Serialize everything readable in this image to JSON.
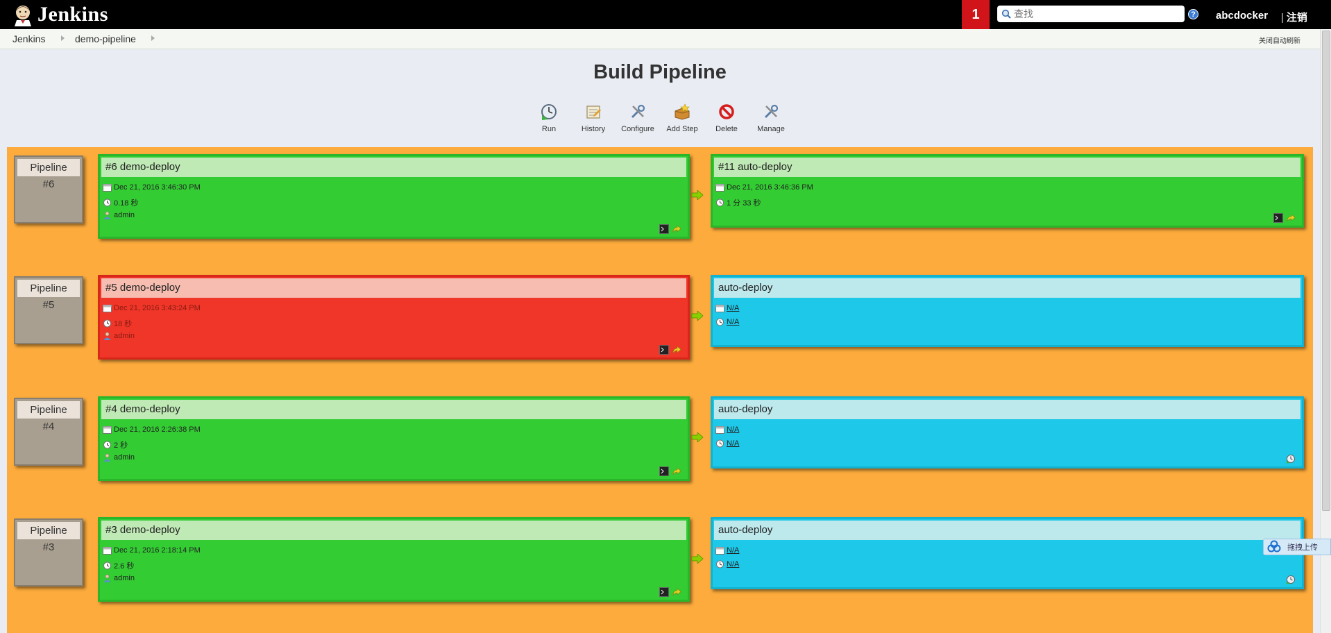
{
  "header": {
    "logo_text": "Jenkins",
    "notification_count": "1",
    "search_placeholder": "查找",
    "help_label": "?",
    "username": "abcdocker",
    "logout_label": "注销",
    "logout_separator": "|"
  },
  "breadcrumbs": {
    "items": [
      "Jenkins",
      "demo-pipeline"
    ],
    "auto_refresh": "关闭自动刷新"
  },
  "page_title": "Build Pipeline",
  "toolbar": {
    "run": "Run",
    "history": "History",
    "configure": "Configure",
    "add_step": "Add Step",
    "delete": "Delete",
    "manage": "Manage"
  },
  "pipelines": [
    {
      "label": "Pipeline",
      "number": "#6",
      "first": {
        "status": "success",
        "title": "#6 demo-deploy",
        "date": "Dec 21, 2016 3:46:30 PM",
        "duration": "0.18 秒",
        "user": "admin"
      },
      "second": {
        "status": "success",
        "title": "#11 auto-deploy",
        "date": "Dec 21, 2016 3:46:36 PM",
        "duration": "1 分 33 秒"
      }
    },
    {
      "label": "Pipeline",
      "number": "#5",
      "first": {
        "status": "failed",
        "title": "#5 demo-deploy",
        "date": "Dec 21, 2016 3:43:24 PM",
        "duration": "18 秒",
        "user": "admin"
      },
      "second": {
        "status": "pending",
        "title": "auto-deploy",
        "date": "N/A",
        "duration": "N/A"
      }
    },
    {
      "label": "Pipeline",
      "number": "#4",
      "first": {
        "status": "success",
        "title": "#4 demo-deploy",
        "date": "Dec 21, 2016 2:26:38 PM",
        "duration": "2 秒",
        "user": "admin"
      },
      "second": {
        "status": "pending",
        "title": "auto-deploy",
        "date": "N/A",
        "duration": "N/A"
      }
    },
    {
      "label": "Pipeline",
      "number": "#3",
      "first": {
        "status": "success",
        "title": "#3 demo-deploy",
        "date": "Dec 21, 2016 2:18:14 PM",
        "duration": "2.6 秒",
        "user": "admin"
      },
      "second": {
        "status": "pending",
        "title": "auto-deploy",
        "date": "N/A",
        "duration": "N/A"
      }
    }
  ],
  "upload_widget": {
    "label": "拖拽上传"
  },
  "colors": {
    "header_bg": "#000000",
    "notification_bg": "#d0141a",
    "pipeline_area_bg": "#fcab3c",
    "success": "#33cc33",
    "failed": "#ef3629",
    "pending": "#1ec8e8",
    "pipeline_label_bg": "#a99f91"
  }
}
